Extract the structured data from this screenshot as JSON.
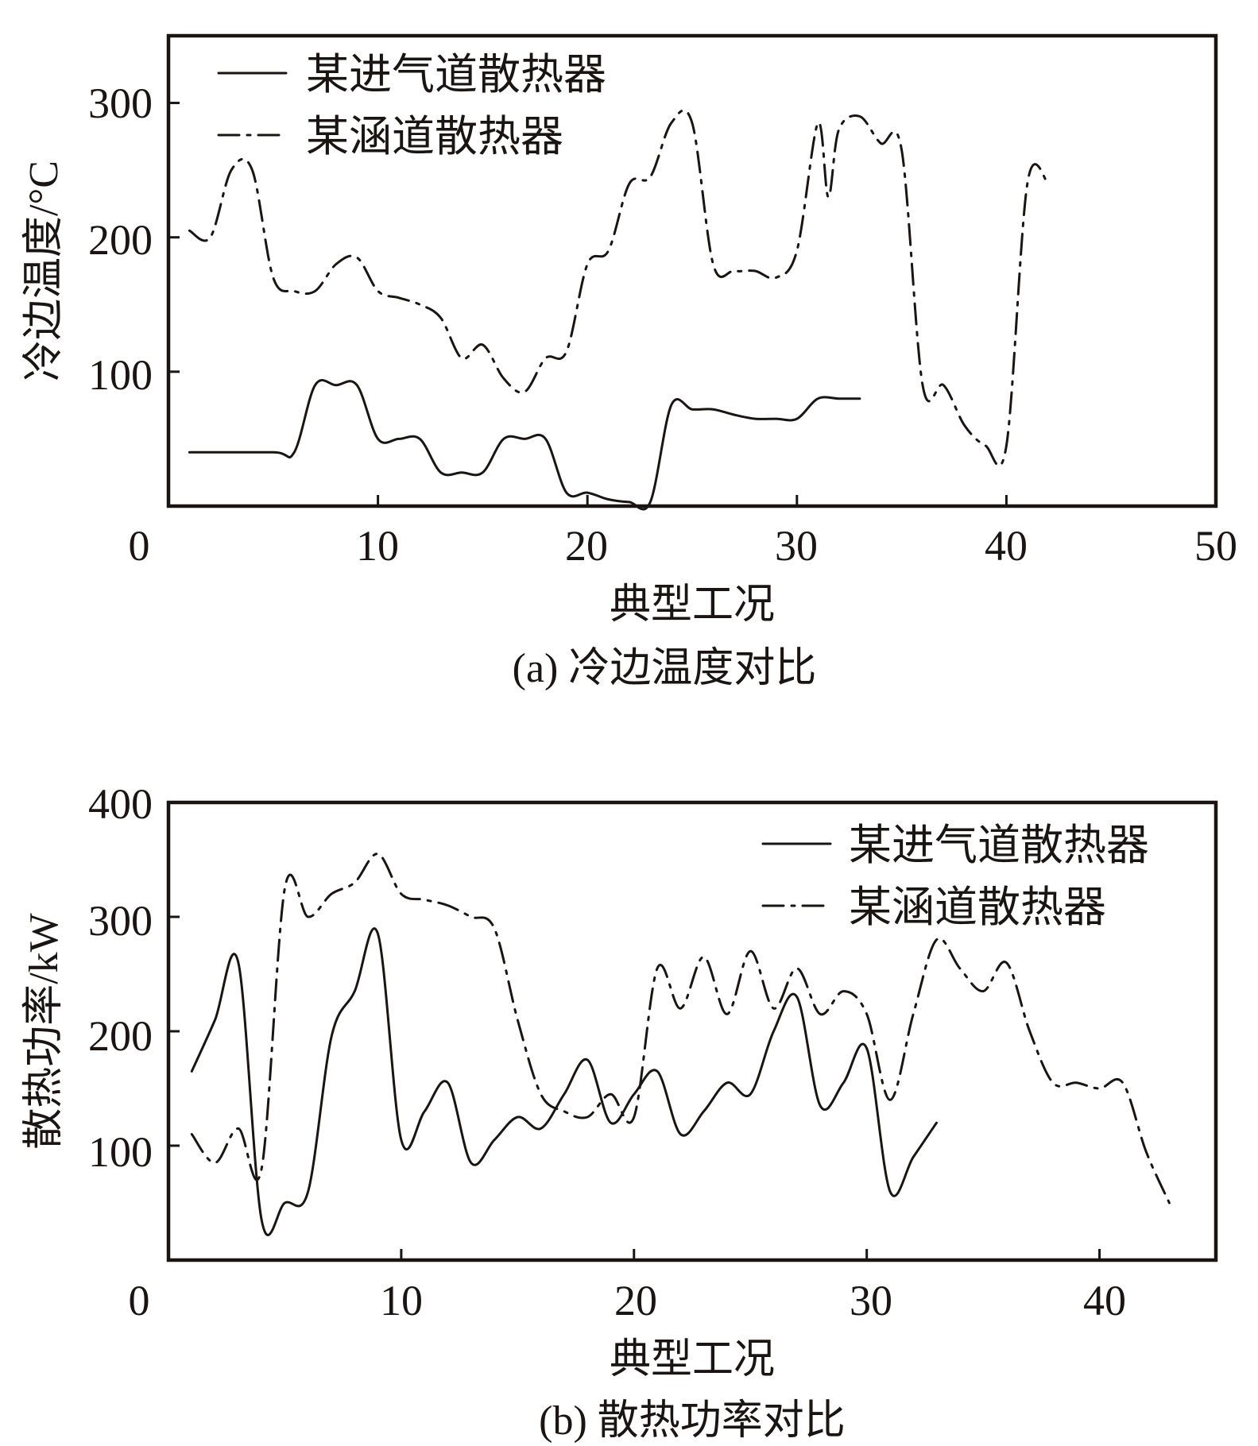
{
  "chart_data": [
    {
      "type": "line",
      "caption": "(a) 冷边温度对比",
      "xlabel": "典型工况",
      "ylabel": "冷边温度/°C",
      "xlim": [
        0,
        50
      ],
      "ylim": [
        0,
        350
      ],
      "xticks": [
        0,
        10,
        20,
        30,
        40,
        50
      ],
      "yticks": [
        100,
        200,
        300
      ],
      "grid": false,
      "legend": "top-left",
      "series": [
        {
          "name": "某进气道散热器",
          "style": "solid",
          "x": [
            1,
            5,
            6,
            7,
            8,
            9,
            10,
            11,
            12,
            13,
            14,
            15,
            16,
            17,
            18,
            19,
            20,
            21,
            22,
            23,
            24,
            25,
            26,
            27,
            28,
            29,
            30,
            31,
            32,
            33
          ],
          "y": [
            40,
            40,
            40,
            90,
            90,
            90,
            50,
            50,
            50,
            25,
            25,
            25,
            50,
            50,
            50,
            10,
            10,
            5,
            3,
            3,
            75,
            72,
            72,
            68,
            65,
            65,
            65,
            80,
            80,
            80
          ]
        },
        {
          "name": "某涵道散热器",
          "style": "dashdot",
          "x": [
            1,
            2,
            3,
            4,
            5,
            6,
            7,
            8,
            9,
            10,
            11,
            12,
            13,
            14,
            15,
            16,
            17,
            18,
            19,
            20,
            21,
            22,
            23,
            24,
            25,
            26,
            27,
            28,
            29,
            30,
            31,
            31.5,
            32,
            33,
            34,
            35,
            36,
            37,
            38,
            39,
            40,
            41,
            42
          ],
          "y": [
            205,
            200,
            250,
            250,
            170,
            160,
            160,
            180,
            185,
            160,
            155,
            150,
            140,
            110,
            120,
            95,
            85,
            110,
            115,
            180,
            190,
            240,
            245,
            285,
            285,
            180,
            175,
            175,
            170,
            190,
            285,
            230,
            280,
            290,
            270,
            265,
            90,
            90,
            60,
            45,
            45,
            240,
            240
          ]
        }
      ]
    },
    {
      "type": "line",
      "caption": "(b) 散热功率对比",
      "xlabel": "典型工况",
      "ylabel": "散热功率/kW",
      "xlim": [
        0,
        45
      ],
      "ylim": [
        0,
        400
      ],
      "xticks": [
        0,
        10,
        20,
        30,
        40
      ],
      "yticks": [
        100,
        200,
        300,
        400
      ],
      "grid": false,
      "legend": "top-right",
      "series": [
        {
          "name": "某进气道散热器",
          "style": "solid",
          "x": [
            1,
            2,
            3,
            4,
            5,
            6,
            7,
            8,
            9,
            10,
            11,
            12,
            13,
            14,
            15,
            16,
            17,
            18,
            19,
            20,
            21,
            22,
            23,
            24,
            25,
            26,
            27,
            28,
            29,
            30,
            31,
            32,
            33
          ],
          "y": [
            165,
            210,
            260,
            35,
            50,
            60,
            195,
            235,
            285,
            105,
            130,
            155,
            85,
            105,
            125,
            115,
            145,
            175,
            120,
            145,
            165,
            110,
            130,
            155,
            145,
            200,
            230,
            135,
            155,
            185,
            60,
            90,
            120
          ]
        },
        {
          "name": "某涵道散热器",
          "style": "dashdot",
          "x": [
            1,
            2,
            3,
            4,
            5,
            6,
            7,
            8,
            9,
            10,
            11,
            12,
            13,
            14,
            15,
            16,
            17,
            18,
            19,
            20,
            21,
            22,
            23,
            24,
            25,
            26,
            27,
            28,
            29,
            30,
            31,
            32,
            33,
            34,
            35,
            36,
            37,
            38,
            39,
            40,
            41,
            42,
            43
          ],
          "y": [
            110,
            85,
            115,
            80,
            325,
            300,
            320,
            330,
            355,
            320,
            315,
            310,
            300,
            290,
            210,
            145,
            130,
            125,
            145,
            125,
            255,
            220,
            265,
            215,
            270,
            220,
            255,
            215,
            235,
            215,
            140,
            215,
            280,
            255,
            235,
            260,
            200,
            155,
            155,
            150,
            155,
            95,
            50
          ]
        }
      ]
    }
  ]
}
